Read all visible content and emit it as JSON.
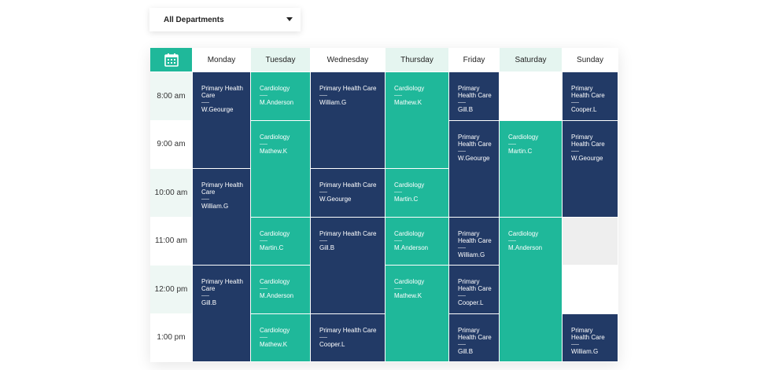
{
  "header": {
    "filter": "All Departments"
  },
  "schedule": {
    "times": [
      "8:00 am",
      "9:00 am",
      "10:00 am",
      "11:00 am",
      "12:00 pm",
      "1:00 pm"
    ],
    "days": [
      {
        "name": "Monday",
        "header_color": "#ffffff",
        "slots": [
          {
            "hours": 2,
            "title": "Primary Health Care",
            "name": "W.Geourge",
            "color": "#223a66"
          },
          {
            "hours": 2,
            "title": "Primary Health Care",
            "name": "William.G",
            "color": "#223a66"
          },
          {
            "hours": 2,
            "title": "Primary Health Care",
            "name": "Gill.B",
            "color": "#223a66"
          }
        ]
      },
      {
        "name": "Tuesday",
        "header_color": "#e5f5f0",
        "slots": [
          {
            "hours": 1,
            "title": "Cardiology",
            "name": "M.Anderson",
            "color": "#1fb89a"
          },
          {
            "hours": 2,
            "title": "Cardiology",
            "name": "Mathew.K",
            "color": "#1fb89a"
          },
          {
            "hours": 1,
            "title": "Cardiology",
            "name": "Martin.C",
            "color": "#1fb89a"
          },
          {
            "hours": 1,
            "title": "Cardiology",
            "name": "M.Anderson",
            "color": "#1fb89a"
          },
          {
            "hours": 1,
            "title": "Cardiology",
            "name": "Mathew.K",
            "color": "#1fb89a"
          }
        ]
      },
      {
        "name": "Wednesday",
        "header_color": "#ffffff",
        "slots": [
          {
            "hours": 2,
            "title": "Primary Health Care",
            "name": "William.G",
            "color": "#223a66"
          },
          {
            "hours": 1,
            "title": "Primary Health Care",
            "name": "W.Geourge",
            "color": "#223a66"
          },
          {
            "hours": 2,
            "title": "Primary Health Care",
            "name": "Gill.B",
            "color": "#223a66"
          },
          {
            "hours": 1,
            "title": "Primary Health Care",
            "name": "Cooper.L",
            "color": "#223a66"
          }
        ]
      },
      {
        "name": "Thursday",
        "header_color": "#e5f5f0",
        "slots": [
          {
            "hours": 2,
            "title": "Cardiology",
            "name": "Mathew.K",
            "color": "#1fb89a"
          },
          {
            "hours": 1,
            "title": "Cardiology",
            "name": "Martin.C",
            "color": "#1fb89a"
          },
          {
            "hours": 1,
            "title": "Cardiology",
            "name": "M.Anderson",
            "color": "#1fb89a"
          },
          {
            "hours": 2,
            "title": "Cardiology",
            "name": "Mathew.K",
            "color": "#1fb89a"
          }
        ]
      },
      {
        "name": "Friday",
        "header_color": "#ffffff",
        "slots": [
          {
            "hours": 1,
            "title": "Primary Health Care",
            "name": "Gill.B",
            "color": "#223a66"
          },
          {
            "hours": 2,
            "title": "Primary Health Care",
            "name": "W.Geourge",
            "color": "#223a66"
          },
          {
            "hours": 1,
            "title": "Primary Health Care",
            "name": "William.G",
            "color": "#223a66"
          },
          {
            "hours": 1,
            "title": "Primary Health Care",
            "name": "Cooper.L",
            "color": "#223a66"
          },
          {
            "hours": 1,
            "title": "Primary Health Care",
            "name": "Gill.B",
            "color": "#223a66"
          }
        ]
      },
      {
        "name": "Saturday",
        "header_color": "#e5f5f0",
        "slots": [
          {
            "hours": 1,
            "color": "#ffffff"
          },
          {
            "hours": 2,
            "title": "Cardiology",
            "name": "Martin.C",
            "color": "#1fb89a"
          },
          {
            "hours": 3,
            "title": "Cardiology",
            "name": "M.Anderson",
            "color": "#1fb89a"
          }
        ]
      },
      {
        "name": "Sunday",
        "header_color": "#ffffff",
        "slots": [
          {
            "hours": 1,
            "title": "Primary Health Care",
            "name": "Cooper.L",
            "color": "#223a66"
          },
          {
            "hours": 2,
            "title": "Primary Health Care",
            "name": "W.Geourge",
            "color": "#223a66"
          },
          {
            "hours": 1,
            "color": "#eeeeee"
          },
          {
            "hours": 1,
            "color": "#ffffff"
          },
          {
            "hours": 1,
            "title": "Primary Health Care",
            "name": "William.G",
            "color": "#223a66"
          }
        ]
      }
    ]
  }
}
